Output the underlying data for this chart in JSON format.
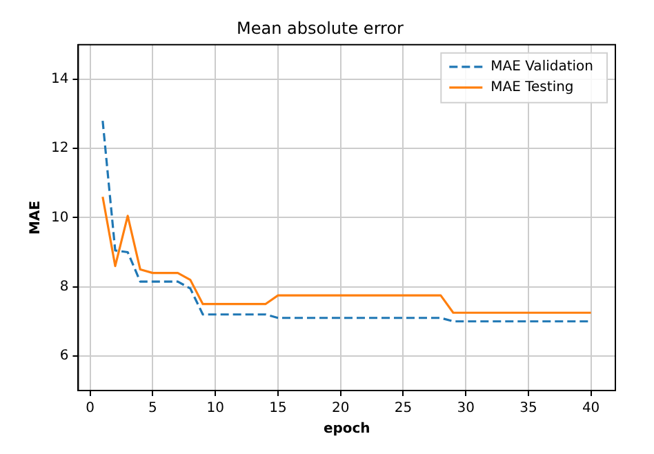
{
  "chart_data": {
    "type": "line",
    "title": "Mean absolute error",
    "xlabel": "epoch",
    "ylabel": "MAE",
    "x": [
      1,
      2,
      3,
      4,
      5,
      6,
      7,
      8,
      9,
      10,
      11,
      12,
      13,
      14,
      15,
      16,
      17,
      18,
      19,
      20,
      21,
      22,
      23,
      24,
      25,
      26,
      27,
      28,
      29,
      30,
      31,
      32,
      33,
      34,
      35,
      36,
      37,
      38,
      39,
      40
    ],
    "series": [
      {
        "name": "MAE Validation",
        "color": "#1f77b4",
        "line_style": "dashed",
        "values": [
          12.8,
          9.05,
          9.0,
          8.15,
          8.15,
          8.15,
          8.15,
          7.95,
          7.2,
          7.2,
          7.2,
          7.2,
          7.2,
          7.2,
          7.1,
          7.1,
          7.1,
          7.1,
          7.1,
          7.1,
          7.1,
          7.1,
          7.1,
          7.1,
          7.1,
          7.1,
          7.1,
          7.1,
          7.0,
          7.0,
          7.0,
          7.0,
          7.0,
          7.0,
          7.0,
          7.0,
          7.0,
          7.0,
          7.0,
          7.0
        ]
      },
      {
        "name": "MAE Testing",
        "color": "#ff7f0e",
        "line_style": "solid",
        "values": [
          10.6,
          8.6,
          10.05,
          8.5,
          8.4,
          8.4,
          8.4,
          8.2,
          7.5,
          7.5,
          7.5,
          7.5,
          7.5,
          7.5,
          7.75,
          7.75,
          7.75,
          7.75,
          7.75,
          7.75,
          7.75,
          7.75,
          7.75,
          7.75,
          7.75,
          7.75,
          7.75,
          7.75,
          7.25,
          7.25,
          7.25,
          7.25,
          7.25,
          7.25,
          7.25,
          7.25,
          7.25,
          7.25,
          7.25,
          7.25
        ]
      }
    ],
    "xlim": [
      -0.95,
      41.95
    ],
    "xticks": [
      0,
      5,
      10,
      15,
      20,
      25,
      30,
      35,
      40
    ],
    "ylim": [
      5,
      15
    ],
    "yticks": [
      6,
      8,
      10,
      12,
      14
    ],
    "grid": true,
    "legend": "top right",
    "marker": "none"
  }
}
